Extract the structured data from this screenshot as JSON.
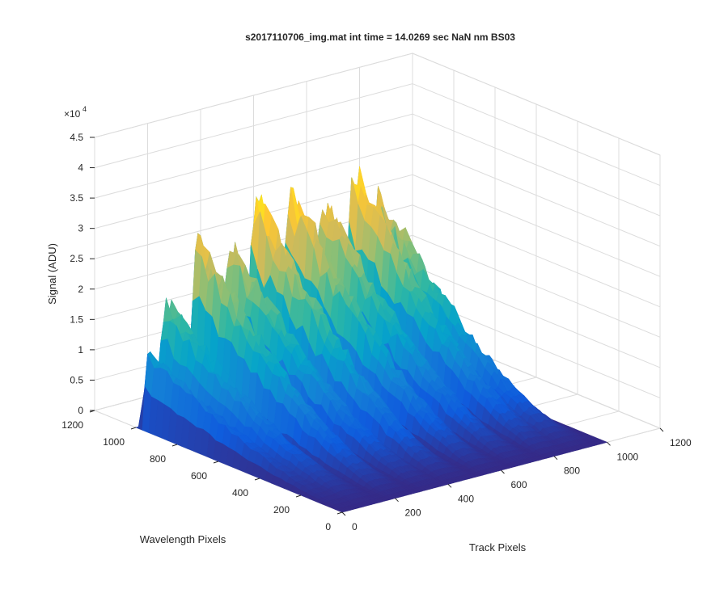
{
  "chart_data": {
    "type": "surface",
    "title": "s2017110706_img.mat int time = 14.0269 sec  NaN nm BS03",
    "xlabel": "Track Pixels",
    "ylabel": "Wavelength Pixels",
    "zlabel": "Signal (ADU)",
    "z_exponent_base": "×10",
    "z_exponent_power": "4",
    "xlim": [
      0,
      1200
    ],
    "ylim": [
      0,
      1200
    ],
    "zlim": [
      0,
      45000
    ],
    "x_ticks": [
      0,
      200,
      400,
      600,
      800,
      1000,
      1200
    ],
    "y_ticks": [
      0,
      200,
      400,
      600,
      800,
      1000,
      1200
    ],
    "z_ticks": [
      0,
      5000,
      10000,
      15000,
      20000,
      25000,
      30000,
      35000,
      40000,
      45000
    ],
    "x_tick_labels": [
      "0",
      "200",
      "400",
      "600",
      "800",
      "1000",
      "1200"
    ],
    "y_tick_labels": [
      "0",
      "200",
      "400",
      "600",
      "800",
      "1000",
      "1200"
    ],
    "z_tick_labels": [
      "0",
      "0.5",
      "1",
      "1.5",
      "2",
      "2.5",
      "3",
      "3.5",
      "4",
      "4.5"
    ],
    "grid": true,
    "colormap": "parula",
    "colormap_stops": [
      "#352a87",
      "#0f5cdd",
      "#1481d6",
      "#06a4ca",
      "#2eb7a4",
      "#87bf77",
      "#d1bb59",
      "#fec832",
      "#f9fb0e"
    ],
    "tracks": [
      {
        "track_center": 20,
        "peak_signal": 12500
      },
      {
        "track_center": 90,
        "peak_signal": 20000
      },
      {
        "track_center": 210,
        "peak_signal": 29000
      },
      {
        "track_center": 330,
        "peak_signal": 27000
      },
      {
        "track_center": 430,
        "peak_signal": 33500
      },
      {
        "track_center": 560,
        "peak_signal": 33000
      },
      {
        "track_center": 680,
        "peak_signal": 30000
      },
      {
        "track_center": 800,
        "peak_signal": 34000
      },
      {
        "track_center": 890,
        "peak_signal": 29000
      }
    ],
    "track_extent": [
      0,
      1000
    ],
    "wavelength_extent": [
      0,
      1000
    ]
  }
}
